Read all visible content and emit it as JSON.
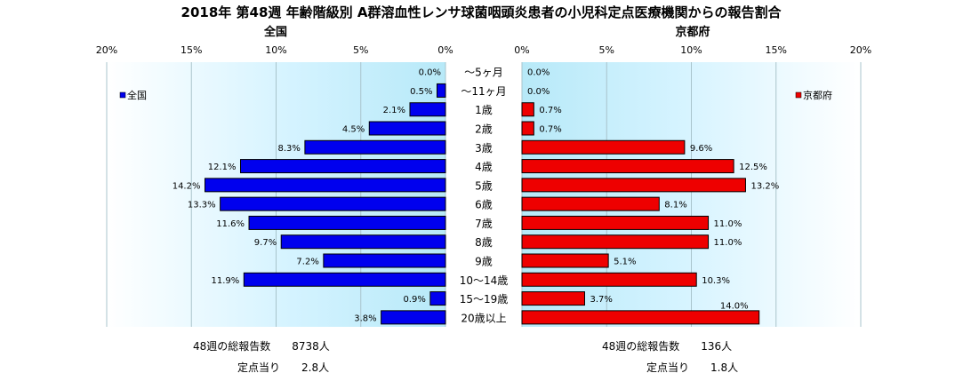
{
  "chart_data": {
    "type": "bar",
    "title": "2018年 第48週 年齢階級別 A群溶血性レンサ球菌咽頭炎患者の小児科定点医療機関からの報告割合",
    "categories": [
      "～5ヶ月",
      "～11ヶ月",
      "1歳",
      "2歳",
      "3歳",
      "4歳",
      "5歳",
      "6歳",
      "7歳",
      "8歳",
      "9歳",
      "10～14歳",
      "15～19歳",
      "20歳以上"
    ],
    "xlim": [
      0,
      20
    ],
    "xticks": [
      "20%",
      "15%",
      "10%",
      "5%",
      "0%"
    ],
    "xticks_right": [
      "0%",
      "5%",
      "10%",
      "15%",
      "20%"
    ],
    "series": [
      {
        "name": "全国",
        "panel_title": "全国",
        "color": "#0000ee",
        "legend_text": "全国",
        "values": [
          0.0,
          0.5,
          2.1,
          4.5,
          8.3,
          12.1,
          14.2,
          13.3,
          11.6,
          9.7,
          7.2,
          11.9,
          0.9,
          3.8
        ],
        "labels": [
          "0.0%",
          "0.5%",
          "2.1%",
          "4.5%",
          "8.3%",
          "12.1%",
          "14.2%",
          "13.3%",
          "11.6%",
          "9.7%",
          "7.2%",
          "11.9%",
          "0.9%",
          "3.8%"
        ]
      },
      {
        "name": "京都府",
        "panel_title": "京都府",
        "color": "#ee0000",
        "legend_text": "京都府",
        "values": [
          0.0,
          0.0,
          0.7,
          0.7,
          9.6,
          12.5,
          13.2,
          8.1,
          11.0,
          11.0,
          5.1,
          10.3,
          3.7,
          14.0
        ],
        "labels": [
          "0.0%",
          "0.0%",
          "0.7%",
          "0.7%",
          "9.6%",
          "12.5%",
          "13.2%",
          "8.1%",
          "11.0%",
          "11.0%",
          "5.1%",
          "10.3%",
          "3.7%",
          "14.0%"
        ]
      }
    ],
    "legend": [
      "left-panel top-left",
      "right-panel top-right"
    ],
    "grid": true
  },
  "footer": {
    "left_reports": "48週の総報告数　　8738人",
    "left_per_site": "定点当り　　2.8人",
    "right_reports": "48週の総報告数　　136人",
    "right_per_site": "定点当り　　1.8人"
  }
}
